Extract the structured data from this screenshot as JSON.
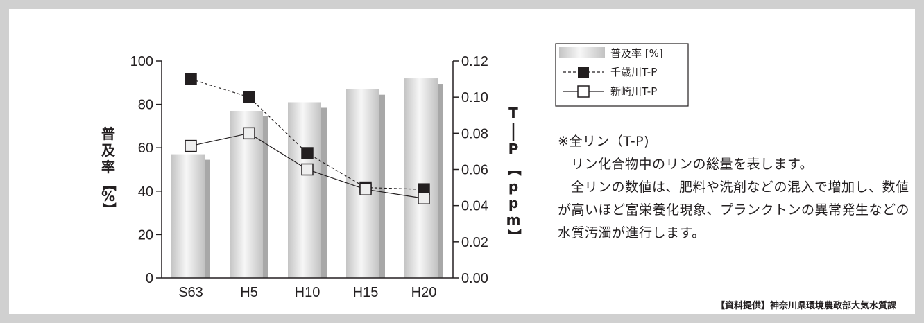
{
  "chart_data": {
    "type": "bar",
    "categories": [
      "S63",
      "H5",
      "H10",
      "H15",
      "H20"
    ],
    "series": [
      {
        "name": "普及率 [%]",
        "axis": "left",
        "kind": "bar",
        "values": [
          57,
          77,
          81,
          87,
          92
        ]
      },
      {
        "name": "千歳川T-P",
        "axis": "right",
        "kind": "line",
        "style": "dashed",
        "marker": "filled-square",
        "values": [
          0.11,
          0.1,
          0.069,
          0.05,
          0.049
        ]
      },
      {
        "name": "新崎川T-P",
        "axis": "right",
        "kind": "line",
        "style": "solid",
        "marker": "open-square",
        "values": [
          0.073,
          0.08,
          0.06,
          0.049,
          0.044
        ]
      }
    ],
    "ylabel": "普及率【%】",
    "y2label": "T—P【ppm】",
    "ylim": [
      0,
      100
    ],
    "y2lim": [
      0,
      0.12
    ],
    "yticks": [
      "0",
      "20",
      "40",
      "60",
      "80",
      "100"
    ],
    "y2ticks": [
      "0.00",
      "0.02",
      "0.04",
      "0.06",
      "0.08",
      "0.10",
      "0.12"
    ],
    "legend_position": "right",
    "grid": false
  },
  "note": {
    "heading": "※全リン（T-P)",
    "line1": "リン化合物中のリンの総量を表します。",
    "line2": "全リンの数値は、肥料や洗剤などの混入で増加し、数値が高いほど富栄養化現象、プランクトンの異常発生などの水質汚濁が進行します。"
  },
  "source": "【資料提供】神奈川県環境農政部大気水質課",
  "colors": {
    "bar_light": "#f4f4f4",
    "bar_mid": "#c8c8c8",
    "bar_shadow": "#a8a8a8",
    "line": "#231f20",
    "frame": "#d0d0d0"
  }
}
